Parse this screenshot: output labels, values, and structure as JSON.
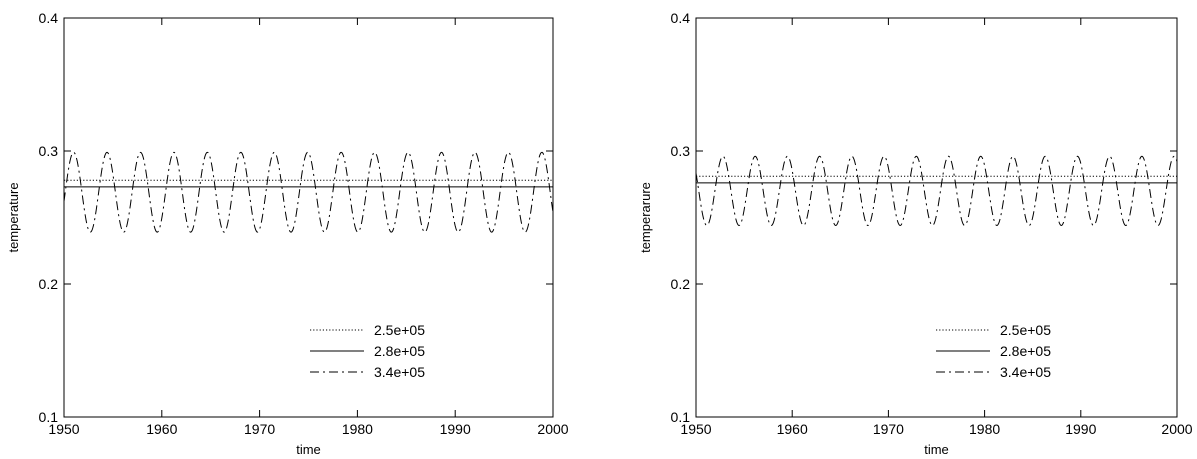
{
  "chart_data": [
    {
      "type": "line",
      "title": "",
      "xlabel": "time",
      "ylabel": "temperature",
      "xlim": [
        1950,
        2000
      ],
      "ylim": [
        0.1,
        0.4
      ],
      "xticks": [
        1950,
        1960,
        1970,
        1980,
        1990,
        2000
      ],
      "yticks": [
        0.1,
        0.2,
        0.3,
        0.4
      ],
      "grid": false,
      "legend_position": "bottom-right",
      "series": [
        {
          "name": "2.5e+05",
          "style": "dotted",
          "constant": 0.278
        },
        {
          "name": "2.8e+05",
          "style": "solid",
          "constant": 0.273
        },
        {
          "name": "3.4e+05",
          "style": "dash-dot",
          "oscillation": {
            "mean": 0.269,
            "amplitude": 0.03,
            "period": 3.42,
            "peak_at": 1954.4
          }
        }
      ]
    },
    {
      "type": "line",
      "title": "",
      "xlabel": "time",
      "ylabel": "temperarure",
      "xlim": [
        1950,
        2000
      ],
      "ylim": [
        0.1,
        0.4
      ],
      "xticks": [
        1950,
        1960,
        1970,
        1980,
        1990,
        2000
      ],
      "yticks": [
        0.1,
        0.2,
        0.3,
        0.4
      ],
      "grid": false,
      "legend_position": "bottom-right",
      "series": [
        {
          "name": "2.5e+05",
          "style": "dotted",
          "constant": 0.281
        },
        {
          "name": "2.8e+05",
          "style": "solid",
          "constant": 0.276
        },
        {
          "name": "3.4e+05",
          "style": "dash-dot",
          "oscillation": {
            "mean": 0.27,
            "amplitude": 0.026,
            "period": 3.35,
            "peak_at": 1952.8
          }
        }
      ]
    }
  ]
}
